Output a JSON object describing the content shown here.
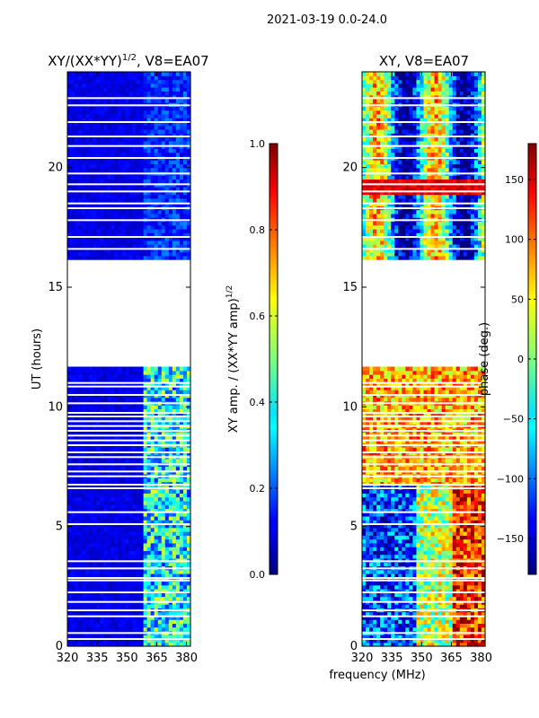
{
  "suptitle": "2021-03-19 0.0-24.0",
  "shared_xlabel": "frequency (MHz)",
  "chart_data": [
    {
      "type": "heatmap",
      "title": "XY/(XX*YY)",
      "title_sup": "1/2",
      "title_suffix": ", V8=EA07",
      "xlabel": "",
      "ylabel": "UT (hours)",
      "xlim": [
        320,
        382
      ],
      "ylim": [
        0,
        24
      ],
      "xticks": [
        320,
        335,
        350,
        365,
        380
      ],
      "yticks": [
        0,
        5,
        10,
        15,
        20
      ],
      "xtick_labels": [
        "320",
        "335",
        "350",
        "365",
        "380"
      ],
      "ytick_labels": [
        "0",
        "5",
        "10",
        "15",
        "20"
      ],
      "data_gaps_hours": [
        [
          11.7,
          16.1
        ]
      ],
      "colorbar": {
        "label": "XY amp. / (XX*YY amp)",
        "label_sup": "1/2",
        "range": [
          0.0,
          1.0
        ],
        "ticks": [
          0.0,
          0.2,
          0.4,
          0.6,
          0.8,
          1.0
        ],
        "tick_labels": [
          "0.0",
          "0.2",
          "0.4",
          "0.6",
          "0.8",
          "1.0"
        ],
        "colormap": "jet"
      }
    },
    {
      "type": "heatmap",
      "title": "XY, V8=EA07",
      "xlabel": "frequency (MHz)",
      "ylabel": "",
      "xlim": [
        320,
        382
      ],
      "ylim": [
        0,
        24
      ],
      "xticks": [
        320,
        335,
        350,
        365,
        380
      ],
      "yticks": [
        0,
        5,
        10,
        15,
        20
      ],
      "xtick_labels": [
        "320",
        "335",
        "350",
        "365",
        "380"
      ],
      "ytick_labels": [
        "0",
        "5",
        "10",
        "15",
        "20"
      ],
      "data_gaps_hours": [
        [
          11.7,
          16.1
        ]
      ],
      "colorbar": {
        "label": "phase (deg.)",
        "range": [
          -180,
          180
        ],
        "ticks": [
          -150,
          -100,
          -50,
          0,
          50,
          100,
          150
        ],
        "tick_labels": [
          "−150",
          "−100",
          "−50",
          "0",
          "50",
          "100",
          "150"
        ],
        "colormap": "jet"
      }
    }
  ]
}
